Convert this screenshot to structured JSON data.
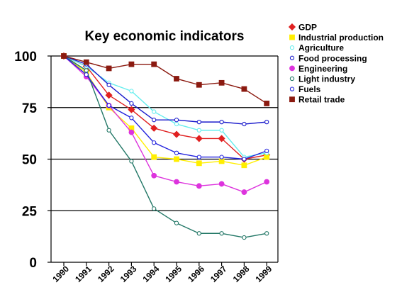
{
  "chart_data": {
    "type": "line",
    "title": "Key economic indicators",
    "xlabel": "",
    "ylabel": "",
    "categories": [
      "1990",
      "1991",
      "1992",
      "1993",
      "1994",
      "1995",
      "1996",
      "1997",
      "1998",
      "1999"
    ],
    "y_ticks": [
      0,
      25,
      50,
      75,
      100
    ],
    "ylim": [
      0,
      100
    ],
    "grid": "horizontal",
    "legend_position": "top-right",
    "series": [
      {
        "name": "GDP",
        "color": "#e02020",
        "marker": "diamond-filled",
        "values": [
          100,
          95,
          81,
          74,
          65,
          62,
          60,
          60,
          50,
          52
        ]
      },
      {
        "name": "Industrial production",
        "color": "#ffee00",
        "marker": "square-filled",
        "values": [
          100,
          92,
          75,
          65,
          51,
          50,
          48,
          49,
          47,
          51
        ]
      },
      {
        "name": "Agriculture",
        "color": "#66eeee",
        "marker": "circle-open",
        "values": [
          100,
          95,
          87,
          83,
          73,
          67,
          64,
          64,
          51,
          53
        ]
      },
      {
        "name": "Food processing",
        "color": "#1a1acc",
        "marker": "circle-open",
        "values": [
          100,
          96,
          86,
          77,
          69,
          69,
          68,
          68,
          67,
          68
        ]
      },
      {
        "name": "Engineering",
        "color": "#dd33dd",
        "marker": "circle-filled",
        "values": [
          100,
          90,
          76,
          63,
          42,
          39,
          37,
          38,
          34,
          39
        ]
      },
      {
        "name": "Light industry",
        "color": "#227766",
        "marker": "circle-open",
        "values": [
          100,
          93,
          64,
          49,
          26,
          19,
          14,
          14,
          12,
          14
        ]
      },
      {
        "name": "Fuels",
        "color": "#2222dd",
        "marker": "circle-open",
        "values": [
          100,
          91,
          76,
          70,
          58,
          53,
          51,
          51,
          50,
          54
        ]
      },
      {
        "name": "Retail trade",
        "color": "#8b1a10",
        "marker": "square-filled",
        "values": [
          100,
          97,
          94,
          96,
          96,
          89,
          86,
          87,
          84,
          77
        ]
      }
    ]
  }
}
